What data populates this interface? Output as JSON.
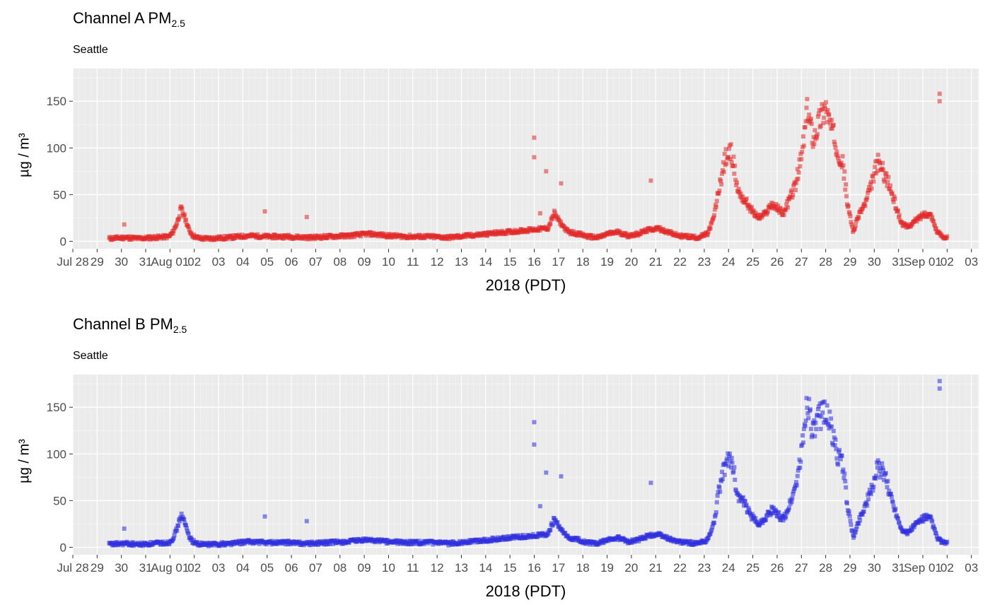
{
  "chart_data": [
    {
      "type": "scatter",
      "title_main": "Channel A PM",
      "title_sub": "2.5",
      "subtitle": "Seattle",
      "xlabel": "2018 (PDT)",
      "ylabel": "µg / m³",
      "ylim": [
        -8,
        185
      ],
      "yticks": [
        0,
        50,
        100,
        150
      ],
      "xlim": [
        "2018-07-28",
        "2018-09-03"
      ],
      "x_tick_labels": [
        "Jul 28",
        "29",
        "30",
        "31",
        "Aug 01",
        "02",
        "03",
        "04",
        "05",
        "06",
        "07",
        "08",
        "09",
        "10",
        "11",
        "12",
        "13",
        "14",
        "15",
        "16",
        "17",
        "18",
        "19",
        "20",
        "21",
        "22",
        "23",
        "24",
        "25",
        "26",
        "27",
        "28",
        "29",
        "30",
        "31",
        "Sep 01",
        "02",
        "03"
      ],
      "grid": true,
      "legend": "none",
      "color": "#e22a2a",
      "series": [
        {
          "date_range": [
            "2018-07-29T12:00",
            "2018-09-02T00:00"
          ],
          "day_offsets": [
            0.0,
            0.8,
            1.5,
            2.2,
            3.0,
            3.2,
            3.4,
            3.6,
            3.8,
            4.0,
            4.2,
            4.4,
            4.6,
            5.0,
            6.0,
            7.0,
            8.0,
            9.0,
            10.0,
            11.0,
            12.0,
            13.0,
            14.0,
            15.0,
            16.0,
            17.0,
            18.0,
            19.0,
            20.0,
            21.0,
            22.0,
            22.3,
            22.6,
            23.0,
            23.5,
            24.0,
            24.5,
            25.0,
            25.5,
            26.0,
            26.5,
            27.0,
            27.5,
            28.0,
            28.5,
            29.0,
            29.5,
            30.0,
            30.3,
            30.6,
            30.9,
            31.2,
            31.5,
            31.8,
            32.0,
            32.3,
            32.6,
            32.9,
            33.2,
            33.5,
            33.8,
            34.1,
            34.4,
            34.7,
            35.0,
            35.3,
            35.6,
            35.9,
            36.2,
            36.5,
            36.8,
            37.0,
            37.3,
            37.6,
            37.9,
            38.2,
            38.5,
            38.8,
            39.1,
            39.4,
            39.7,
            40.0,
            40.3,
            40.6,
            40.9,
            41.2,
            41.5,
            41.8,
            42.0
          ],
          "y": [
            3,
            4,
            3,
            4,
            5,
            10,
            20,
            35,
            25,
            12,
            6,
            4,
            3,
            3,
            4,
            6,
            5,
            5,
            4,
            5,
            6,
            8,
            6,
            5,
            5,
            4,
            6,
            8,
            10,
            12,
            14,
            30,
            20,
            10,
            8,
            5,
            4,
            8,
            10,
            6,
            8,
            12,
            14,
            10,
            6,
            5,
            4,
            8,
            25,
            60,
            90,
            95,
            55,
            45,
            40,
            30,
            25,
            30,
            40,
            35,
            30,
            45,
            60,
            90,
            140,
            110,
            130,
            145,
            120,
            100,
            80,
            40,
            10,
            30,
            40,
            60,
            85,
            75,
            60,
            40,
            20,
            15,
            20,
            25,
            30,
            28,
            10,
            5,
            4
          ],
          "outliers": [
            [
              1.0,
              18
            ],
            [
              10.4,
              32
            ],
            [
              13.2,
              26
            ],
            [
              36.2,
              65
            ],
            [
              28.4,
              111
            ],
            [
              28.4,
              90
            ],
            [
              29.2,
              75
            ],
            [
              30.2,
              62
            ],
            [
              28.8,
              30
            ],
            [
              55.5,
              158
            ],
            [
              55.5,
              150
            ]
          ]
        }
      ]
    },
    {
      "type": "scatter",
      "title_main": "Channel B PM",
      "title_sub": "2.5",
      "subtitle": "Seattle",
      "xlabel": "2018 (PDT)",
      "ylabel": "µg / m³",
      "ylim": [
        -8,
        185
      ],
      "yticks": [
        0,
        50,
        100,
        150
      ],
      "xlim": [
        "2018-07-28",
        "2018-09-03"
      ],
      "x_tick_labels": [
        "Jul 28",
        "29",
        "30",
        "31",
        "Aug 01",
        "02",
        "03",
        "04",
        "05",
        "06",
        "07",
        "08",
        "09",
        "10",
        "11",
        "12",
        "13",
        "14",
        "15",
        "16",
        "17",
        "18",
        "19",
        "20",
        "21",
        "22",
        "23",
        "24",
        "25",
        "26",
        "27",
        "28",
        "29",
        "30",
        "31",
        "Sep 01",
        "02",
        "03"
      ],
      "grid": true,
      "legend": "none",
      "color": "#2f2fdf",
      "series": [
        {
          "date_range": [
            "2018-07-29T12:00",
            "2018-09-02T00:00"
          ],
          "day_offsets": [
            0.0,
            0.8,
            1.5,
            2.2,
            3.0,
            3.2,
            3.4,
            3.6,
            3.8,
            4.0,
            4.2,
            4.4,
            4.6,
            5.0,
            6.0,
            7.0,
            8.0,
            9.0,
            10.0,
            11.0,
            12.0,
            13.0,
            14.0,
            15.0,
            16.0,
            17.0,
            18.0,
            19.0,
            20.0,
            21.0,
            22.0,
            22.3,
            22.6,
            23.0,
            23.5,
            24.0,
            24.5,
            25.0,
            25.5,
            26.0,
            26.5,
            27.0,
            27.5,
            28.0,
            28.5,
            29.0,
            29.5,
            30.0,
            30.3,
            30.6,
            30.9,
            31.2,
            31.5,
            31.8,
            32.0,
            32.3,
            32.6,
            32.9,
            33.2,
            33.5,
            33.8,
            34.1,
            34.4,
            34.7,
            35.0,
            35.3,
            35.6,
            35.9,
            36.2,
            36.5,
            36.8,
            37.0,
            37.3,
            37.6,
            37.9,
            38.2,
            38.5,
            38.8,
            39.1,
            39.4,
            39.7,
            40.0,
            40.3,
            40.6,
            40.9,
            41.2,
            41.5,
            41.8,
            42.0
          ],
          "y": [
            3,
            4,
            3,
            4,
            5,
            10,
            20,
            35,
            25,
            12,
            6,
            4,
            3,
            3,
            4,
            6,
            5,
            5,
            4,
            5,
            6,
            8,
            6,
            5,
            5,
            4,
            6,
            8,
            10,
            12,
            14,
            30,
            20,
            10,
            8,
            5,
            4,
            8,
            10,
            6,
            8,
            12,
            14,
            10,
            6,
            5,
            4,
            8,
            25,
            65,
            90,
            95,
            55,
            48,
            40,
            30,
            25,
            32,
            40,
            35,
            30,
            45,
            65,
            100,
            160,
            120,
            140,
            150,
            125,
            100,
            85,
            45,
            10,
            30,
            45,
            60,
            85,
            80,
            60,
            40,
            20,
            15,
            22,
            28,
            32,
            30,
            10,
            5,
            4
          ],
          "outliers": [
            [
              1.0,
              20
            ],
            [
              10.4,
              33
            ],
            [
              13.2,
              28
            ],
            [
              36.2,
              69
            ],
            [
              28.4,
              134
            ],
            [
              28.4,
              110
            ],
            [
              29.2,
              80
            ],
            [
              30.2,
              76
            ],
            [
              28.8,
              44
            ],
            [
              55.5,
              178
            ],
            [
              55.5,
              170
            ]
          ]
        }
      ]
    }
  ]
}
